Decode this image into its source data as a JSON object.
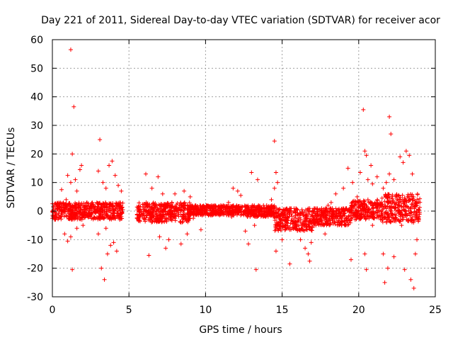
{
  "chart_data": {
    "type": "scatter",
    "title": "Day 221 of 2011, Sidereal Day-to-day VTEC variation (SDTVAR) for receiver acor",
    "xlabel": "GPS time / hours",
    "ylabel": "SDTVAR / TECUs",
    "xlim": [
      0,
      25
    ],
    "ylim": [
      -30,
      60
    ],
    "xticks": [
      0,
      5,
      10,
      15,
      20,
      25
    ],
    "yticks": [
      -30,
      -20,
      -10,
      0,
      10,
      20,
      30,
      40,
      50,
      60
    ],
    "grid": true,
    "marker": "+",
    "colors": {
      "series": "#ff0000",
      "grid": "#a0a0a0",
      "axis": "#000000"
    },
    "dense_band": [
      {
        "x_start": 0.0,
        "x_end": 4.6,
        "lo": -3,
        "hi": 3
      },
      {
        "x_start": 5.5,
        "x_end": 9.0,
        "lo": -4,
        "hi": 3
      },
      {
        "x_start": 9.0,
        "x_end": 12.5,
        "lo": -1.5,
        "hi": 2
      },
      {
        "x_start": 12.5,
        "x_end": 14.5,
        "lo": -2,
        "hi": 2
      },
      {
        "x_start": 14.5,
        "x_end": 17.0,
        "lo": -7,
        "hi": 1
      },
      {
        "x_start": 17.0,
        "x_end": 19.5,
        "lo": -5,
        "hi": 1
      },
      {
        "x_start": 19.5,
        "x_end": 21.5,
        "lo": -3,
        "hi": 4
      },
      {
        "x_start": 21.5,
        "x_end": 24.0,
        "lo": -4,
        "hi": 6
      }
    ],
    "points": [
      [
        1.2,
        56.5
      ],
      [
        1.4,
        36.5
      ],
      [
        3.1,
        25
      ],
      [
        1.3,
        20
      ],
      [
        1.9,
        16
      ],
      [
        1.8,
        14.5
      ],
      [
        1.0,
        12.5
      ],
      [
        1.2,
        10
      ],
      [
        1.5,
        11
      ],
      [
        1.6,
        7
      ],
      [
        0.6,
        7.5
      ],
      [
        0.9,
        4
      ],
      [
        0.8,
        -8
      ],
      [
        1.0,
        -10.5
      ],
      [
        1.2,
        -9
      ],
      [
        1.3,
        -20.5
      ],
      [
        1.6,
        -6
      ],
      [
        2.0,
        -5
      ],
      [
        3.2,
        -20
      ],
      [
        3.4,
        -24
      ],
      [
        3.6,
        -15
      ],
      [
        3.8,
        -12
      ],
      [
        4.0,
        -11
      ],
      [
        4.2,
        -14
      ],
      [
        3.0,
        14
      ],
      [
        3.3,
        10
      ],
      [
        3.5,
        8
      ],
      [
        3.7,
        16
      ],
      [
        3.9,
        17.5
      ],
      [
        4.1,
        12.5
      ],
      [
        4.3,
        9
      ],
      [
        4.5,
        7
      ],
      [
        4.4,
        -3
      ],
      [
        4.6,
        0.5
      ],
      [
        3.5,
        -6
      ],
      [
        3.0,
        -8
      ],
      [
        6.1,
        13
      ],
      [
        6.5,
        8
      ],
      [
        6.9,
        12
      ],
      [
        7.2,
        6
      ],
      [
        6.3,
        -15.5
      ],
      [
        7.0,
        -9
      ],
      [
        7.4,
        -13
      ],
      [
        7.6,
        -10
      ],
      [
        8.4,
        -11.5
      ],
      [
        8.8,
        -8
      ],
      [
        9.2,
        -2.5
      ],
      [
        9.7,
        -6.5
      ],
      [
        8.0,
        6
      ],
      [
        8.6,
        7
      ],
      [
        9.0,
        5
      ],
      [
        7.8,
        3
      ],
      [
        10.3,
        1
      ],
      [
        11.0,
        2
      ],
      [
        11.5,
        3
      ],
      [
        11.8,
        8
      ],
      [
        12.3,
        5.5
      ],
      [
        12.1,
        7
      ],
      [
        11.7,
        -2
      ],
      [
        12.6,
        -7
      ],
      [
        12.8,
        -11.5
      ],
      [
        13.2,
        -5
      ],
      [
        13.0,
        13.5
      ],
      [
        13.4,
        11
      ],
      [
        13.3,
        -20.5
      ],
      [
        14.2,
        -1
      ],
      [
        14.3,
        4
      ],
      [
        14.5,
        24.5
      ],
      [
        14.6,
        13.5
      ],
      [
        14.7,
        10
      ],
      [
        14.5,
        8
      ],
      [
        14.8,
        -2
      ],
      [
        14.6,
        -14
      ],
      [
        15.0,
        -10
      ],
      [
        15.3,
        -4
      ],
      [
        15.5,
        -18.5
      ],
      [
        15.8,
        -6
      ],
      [
        16.2,
        -10
      ],
      [
        16.5,
        -13
      ],
      [
        16.7,
        -15
      ],
      [
        16.8,
        -17.5
      ],
      [
        16.9,
        -11
      ],
      [
        17.2,
        -5
      ],
      [
        17.5,
        -3
      ],
      [
        17.8,
        -8
      ],
      [
        18.0,
        2
      ],
      [
        18.2,
        3
      ],
      [
        18.5,
        6
      ],
      [
        19.0,
        8
      ],
      [
        19.3,
        15
      ],
      [
        19.6,
        10
      ],
      [
        19.9,
        5
      ],
      [
        19.5,
        -17
      ],
      [
        20.1,
        13.5
      ],
      [
        20.3,
        35.5
      ],
      [
        20.4,
        21
      ],
      [
        20.5,
        19.5
      ],
      [
        20.6,
        11
      ],
      [
        20.8,
        16
      ],
      [
        20.9,
        9.5
      ],
      [
        20.4,
        -15
      ],
      [
        20.5,
        -20.5
      ],
      [
        20.9,
        -5
      ],
      [
        21.2,
        12
      ],
      [
        21.6,
        8
      ],
      [
        21.8,
        10
      ],
      [
        22.0,
        13
      ],
      [
        22.1,
        27
      ],
      [
        22.0,
        33
      ],
      [
        22.3,
        11
      ],
      [
        22.5,
        5
      ],
      [
        22.7,
        19
      ],
      [
        22.9,
        17
      ],
      [
        23.1,
        21
      ],
      [
        23.3,
        19.5
      ],
      [
        23.5,
        13
      ],
      [
        21.6,
        -15
      ],
      [
        21.7,
        -25
      ],
      [
        21.9,
        -20
      ],
      [
        22.3,
        -16
      ],
      [
        22.8,
        -5
      ],
      [
        23.0,
        -20.5
      ],
      [
        23.4,
        -24
      ],
      [
        23.6,
        -27
      ],
      [
        23.7,
        -15
      ],
      [
        23.8,
        -10
      ]
    ]
  }
}
